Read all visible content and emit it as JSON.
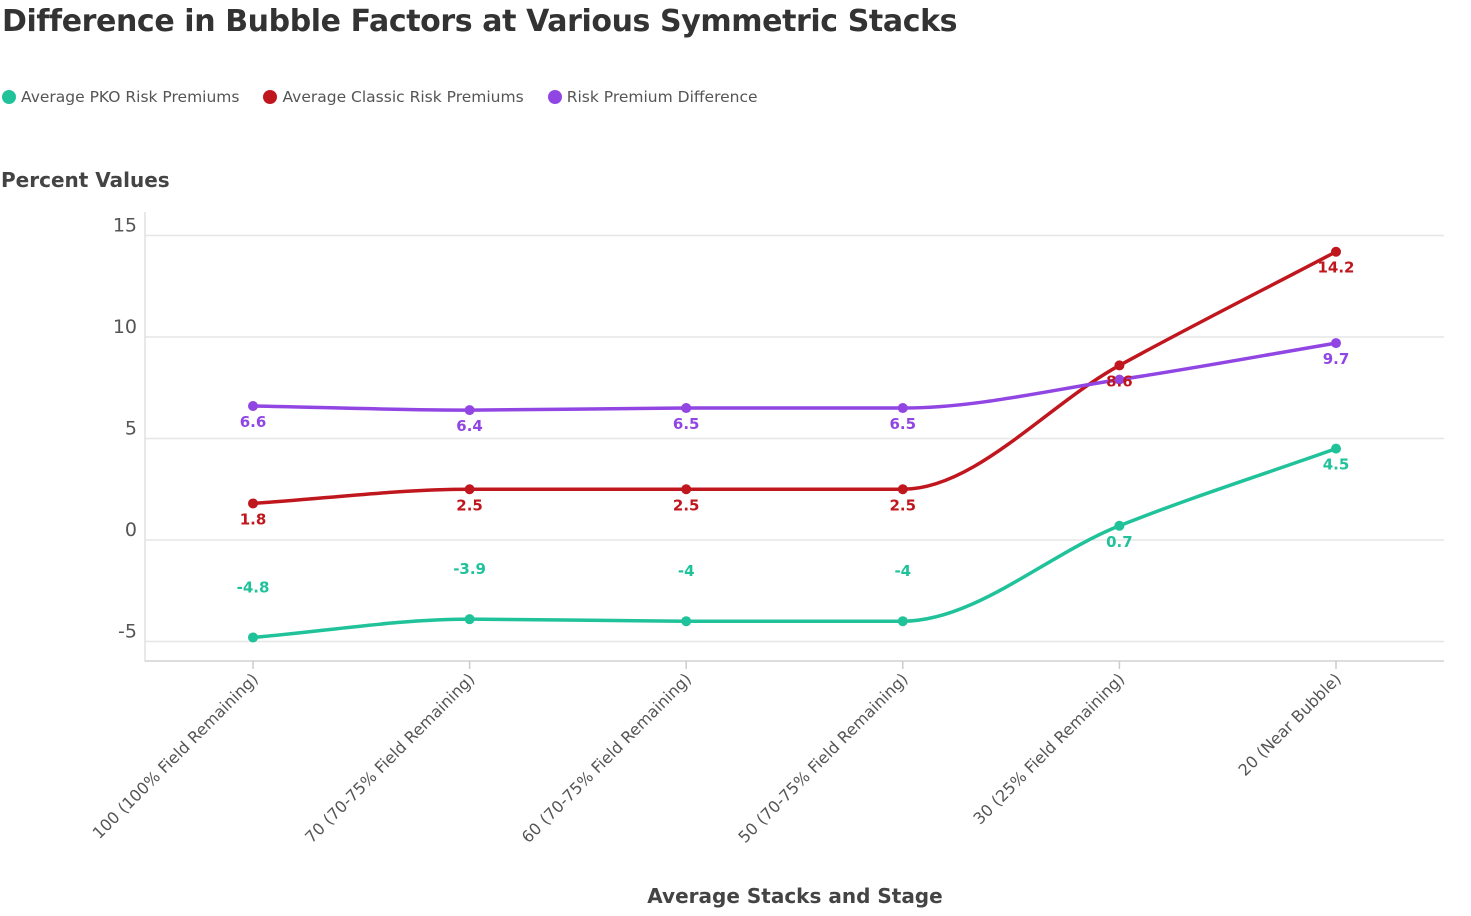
{
  "chart_data": {
    "type": "line",
    "title": "Difference in Bubble Factors at Various Symmetric Stacks",
    "ylabel": "Percent Values",
    "xlabel": "Average Stacks and Stage",
    "categories": [
      "100 (100% Field Remaining)",
      "70 (70-75% Field Remaining)",
      "60 (70-75% Field Remaining)",
      "50 (70-75% Field Remaining)",
      "30 (25% Field Remaining)",
      "20 (Near Bubble)"
    ],
    "yticks": [
      "-5",
      "0",
      "5",
      "10",
      "15"
    ],
    "ytick_values": [
      -5,
      0,
      5,
      10,
      15
    ],
    "ylim": [
      -6,
      16
    ],
    "grid": true,
    "legend_position": "top-left",
    "series": [
      {
        "name": "Average PKO Risk Premiums",
        "color": "#20c29a",
        "values": [
          -4.8,
          -3.9,
          -4,
          -4,
          0.7,
          4.5
        ],
        "labels": [
          "-4.8",
          "-3.9",
          "-4",
          "-4",
          "0.7",
          "4.5"
        ]
      },
      {
        "name": "Average Classic Risk Premiums",
        "color": "#c0171f",
        "values": [
          1.8,
          2.5,
          2.5,
          2.5,
          8.6,
          14.2
        ],
        "labels": [
          "1.8",
          "2.5",
          "2.5",
          "2.5",
          "8.6",
          "14.2"
        ]
      },
      {
        "name": "Risk Premium Difference",
        "color": "#9146e3",
        "values": [
          6.6,
          6.4,
          6.5,
          6.5,
          7.9,
          9.7
        ],
        "labels": [
          "6.6",
          "6.4",
          "6.5",
          "6.5",
          "",
          "9.7"
        ]
      }
    ]
  }
}
